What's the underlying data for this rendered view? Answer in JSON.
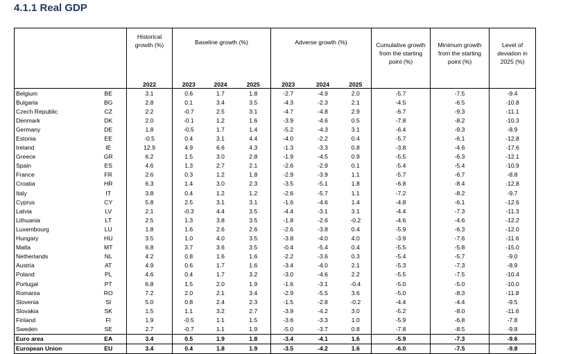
{
  "title": "4.1.1 Real GDP",
  "header": {
    "historical": "Historical growth (%)",
    "baseline": "Baseline growth (%)",
    "adverse": "Adverse growth (%)",
    "cumulative": "Cumulative growth from the starting point (%)",
    "minimum": "Minimum growth from the starting point (%)",
    "level": "Level of deviation in 2025 (%)",
    "years": [
      "2022",
      "2023",
      "2024",
      "2025",
      "2023",
      "2024",
      "2025"
    ]
  },
  "rows": [
    [
      "Belgium",
      "BE",
      "3.1",
      "0.6",
      "1.7",
      "1.8",
      "-2.7",
      "-4.9",
      "2.0",
      "-5.7",
      "-7.5",
      "-9.4"
    ],
    [
      "Bulgaria",
      "BG",
      "2.8",
      "0.1",
      "3.4",
      "3.5",
      "-4.3",
      "-2.3",
      "2.1",
      "-4.5",
      "-6.5",
      "-10.8"
    ],
    [
      "Czech Republic",
      "CZ",
      "2.2",
      "-0.7",
      "2.5",
      "3.1",
      "-4.7",
      "-4.8",
      "2.9",
      "-6.7",
      "-9.3",
      "-11.1"
    ],
    [
      "Denmark",
      "DK",
      "2.0",
      "-0.1",
      "1.2",
      "1.6",
      "-3.9",
      "-4.6",
      "0.5",
      "-7.8",
      "-8.2",
      "-10.3"
    ],
    [
      "Germany",
      "DE",
      "1.8",
      "-0.5",
      "1.7",
      "1.4",
      "-5.2",
      "-4.3",
      "3.1",
      "-6.4",
      "-9.3",
      "-8.9"
    ],
    [
      "Estonia",
      "EE",
      "-0.5",
      "0.4",
      "3.1",
      "4.4",
      "-4.0",
      "-2.2",
      "0.4",
      "-5.7",
      "-6.1",
      "-12.8"
    ],
    [
      "Ireland",
      "IE",
      "12.9",
      "4.9",
      "6.6",
      "4.3",
      "-1.3",
      "-3.3",
      "0.8",
      "-3.8",
      "-4.6",
      "-17.6"
    ],
    [
      "Greece",
      "GR",
      "6.2",
      "1.5",
      "3.0",
      "2.8",
      "-1.9",
      "-4.5",
      "0.9",
      "-5.5",
      "-6.3",
      "-12.1"
    ],
    [
      "Spain",
      "ES",
      "4.6",
      "1.3",
      "2.7",
      "2.1",
      "-2.6",
      "-2.9",
      "0.1",
      "-5.4",
      "-5.4",
      "-10.9"
    ],
    [
      "France",
      "FR",
      "2.6",
      "0.3",
      "1.2",
      "1.8",
      "-2.9",
      "-3.9",
      "1.1",
      "-5.7",
      "-6.7",
      "-8.8"
    ],
    [
      "Croatia",
      "HR",
      "6.3",
      "1.4",
      "3.0",
      "2.3",
      "-3.5",
      "-5.1",
      "1.8",
      "-6.8",
      "-8.4",
      "-12.8"
    ],
    [
      "Italy",
      "IT",
      "3.8",
      "0.4",
      "1.2",
      "1.2",
      "-2.6",
      "-5.7",
      "1.1",
      "-7.2",
      "-8.2",
      "-9.7"
    ],
    [
      "Cyprus",
      "CY",
      "5.8",
      "2.5",
      "3.1",
      "3.1",
      "-1.6",
      "-4.6",
      "1.4",
      "-4.8",
      "-6.1",
      "-12.6"
    ],
    [
      "Latvia",
      "LV",
      "2.1",
      "-0.3",
      "4.4",
      "3.5",
      "-4.4",
      "-3.1",
      "3.1",
      "-4.4",
      "-7.3",
      "-11.3"
    ],
    [
      "Lithuania",
      "LT",
      "2.5",
      "1.3",
      "3.8",
      "3.5",
      "-1.8",
      "-2.6",
      "-0.2",
      "-4.6",
      "-4.6",
      "-12.2"
    ],
    [
      "Luxembourg",
      "LU",
      "1.8",
      "1.6",
      "2.6",
      "2.6",
      "-2.6",
      "-3.8",
      "0.4",
      "-5.9",
      "-6.3",
      "-12.0"
    ],
    [
      "Hungary",
      "HU",
      "3.5",
      "1.0",
      "4.0",
      "3.5",
      "-3.8",
      "-4.0",
      "4.0",
      "-3.9",
      "-7.6",
      "-11.6"
    ],
    [
      "Malta",
      "MT",
      "6.8",
      "3.7",
      "3.6",
      "3.5",
      "-0.4",
      "-5.4",
      "0.4",
      "-5.5",
      "-5.8",
      "-15.0"
    ],
    [
      "Netherlands",
      "NL",
      "4.2",
      "0.8",
      "1.6",
      "1.6",
      "-2.2",
      "-3.6",
      "0.3",
      "-5.4",
      "-5.7",
      "-9.0"
    ],
    [
      "Austria",
      "AT",
      "4.9",
      "0.6",
      "1.7",
      "1.6",
      "-3.4",
      "-4.0",
      "2.1",
      "-5.3",
      "-7.3",
      "-8.9"
    ],
    [
      "Poland",
      "PL",
      "4.6",
      "0.4",
      "1.7",
      "3.2",
      "-3.0",
      "-4.6",
      "2.2",
      "-5.5",
      "-7.5",
      "-10.4"
    ],
    [
      "Portugal",
      "PT",
      "6.8",
      "1.5",
      "2.0",
      "1.9",
      "-1.6",
      "-3.1",
      "-0.4",
      "-5.0",
      "-5.0",
      "-10.0"
    ],
    [
      "Romania",
      "RO",
      "7.2",
      "2.0",
      "2.1",
      "3.4",
      "-2.9",
      "-5.5",
      "3.6",
      "-5.0",
      "-8.3",
      "-11.8"
    ],
    [
      "Slovenia",
      "SI",
      "5.0",
      "0.8",
      "2.4",
      "2.3",
      "-1.5",
      "-2.8",
      "-0.2",
      "-4.4",
      "-4.4",
      "-9.5"
    ],
    [
      "Slovakia",
      "SK",
      "1.5",
      "1.1",
      "3.2",
      "2.7",
      "-3.9",
      "-4.2",
      "3.0",
      "-5.2",
      "-8.0",
      "-11.6"
    ],
    [
      "Finland",
      "FI",
      "1.9",
      "-0.5",
      "1.1",
      "1.5",
      "-3.6",
      "-3.3",
      "1.0",
      "-5.9",
      "-6.8",
      "-7.8"
    ],
    [
      "Sweden",
      "SE",
      "2.7",
      "-0.7",
      "1.1",
      "1.9",
      "-5.0",
      "-3.7",
      "0.8",
      "-7.8",
      "-8.5",
      "-9.8"
    ]
  ],
  "aggregates": [
    [
      "Euro area",
      "EA",
      "3.4",
      "0.5",
      "1.9",
      "1.8",
      "-3.4",
      "-4.1",
      "1.6",
      "-5.9",
      "-7.3",
      "-9.6"
    ],
    [
      "European Union",
      "EU",
      "3.4",
      "0.4",
      "1.8",
      "1.9",
      "-3.5",
      "-4.2",
      "1.6",
      "-6.0",
      "-7.5",
      "-9.8"
    ]
  ]
}
